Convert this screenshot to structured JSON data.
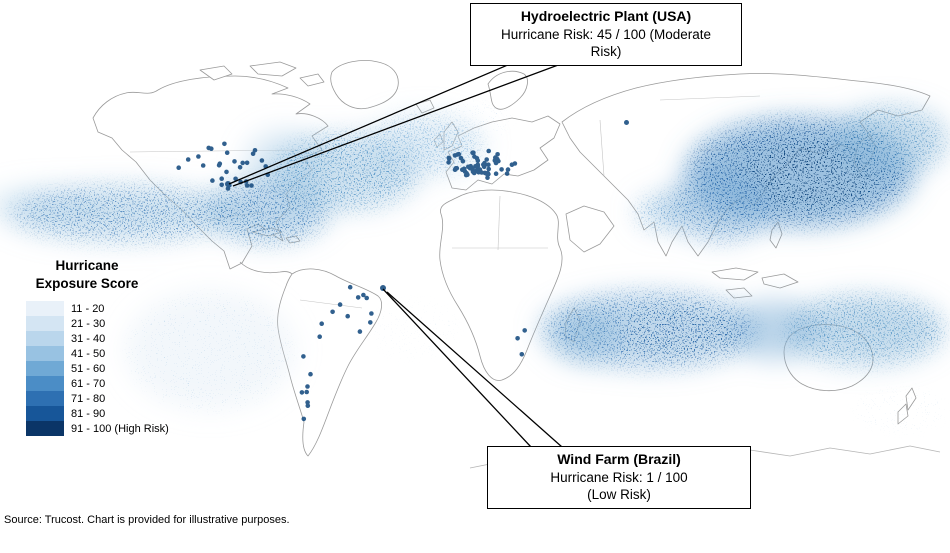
{
  "figure": {
    "source_note": "Source: Trucost.  Chart is provided for illustrative purposes."
  },
  "legend": {
    "title_line1": "Hurricane",
    "title_line2": "Exposure Score",
    "items": [
      {
        "label": "11 - 20",
        "color": "#e9f1f9"
      },
      {
        "label": "21 - 30",
        "color": "#d4e5f3"
      },
      {
        "label": "31 - 40",
        "color": "#bad6ec"
      },
      {
        "label": "41 - 50",
        "color": "#98c2e2"
      },
      {
        "label": "51 - 60",
        "color": "#70a9d5"
      },
      {
        "label": "61 - 70",
        "color": "#4b8dc6"
      },
      {
        "label": "71 - 80",
        "color": "#2e70b2"
      },
      {
        "label": "81 - 90",
        "color": "#175699"
      },
      {
        "label": "91 - 100 (High Risk)",
        "color": "#0b3567"
      }
    ]
  },
  "callouts": {
    "top": {
      "title": "Hydroelectric Plant (USA)",
      "body_line1": "Hurricane Risk: 45 / 100 (Moderate",
      "body_line2": "Risk)"
    },
    "bottom": {
      "title": "Wind Farm (Brazil)",
      "body_line1": "Hurricane Risk: 1 / 100",
      "body_line2": "(Low Risk)"
    }
  },
  "chart_data": {
    "type": "map",
    "subtype": "world-hurricane-exposure-density",
    "legend_title": "Hurricane Exposure Score",
    "legend_bins": [
      "11 - 20",
      "21 - 30",
      "31 - 40",
      "41 - 50",
      "51 - 60",
      "61 - 70",
      "71 - 80",
      "81 - 90",
      "91 - 100 (High Risk)"
    ],
    "annotations": [
      {
        "label": "Hydroelectric Plant (USA)",
        "metric": "Hurricane Risk",
        "value": 45,
        "max": 100,
        "category": "Moderate Risk"
      },
      {
        "label": "Wind Farm (Brazil)",
        "metric": "Hurricane Risk",
        "value": 1,
        "max": 100,
        "category": "Low Risk"
      }
    ],
    "source": "Source: Trucost.  Chart is provided for illustrative purposes."
  }
}
